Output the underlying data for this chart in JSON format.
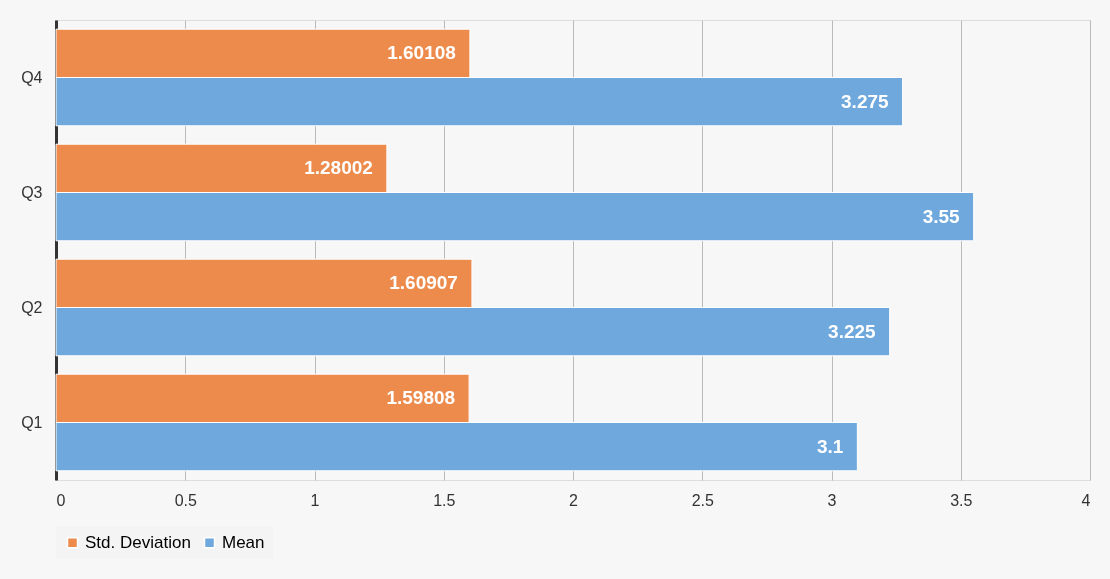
{
  "chart_data": {
    "type": "bar",
    "orientation": "horizontal",
    "categories": [
      "Q4",
      "Q3",
      "Q2",
      "Q1"
    ],
    "series": [
      {
        "name": "Std. Deviation",
        "color": "#ed8b4d",
        "values": [
          1.60108,
          1.28002,
          1.60907,
          1.59808
        ]
      },
      {
        "name": "Mean",
        "color": "#6fa8dc",
        "values": [
          3.275,
          3.55,
          3.225,
          3.1
        ]
      }
    ],
    "xlim": [
      0,
      4
    ],
    "xticks": [
      0,
      0.5,
      1,
      1.5,
      2,
      2.5,
      3,
      3.5,
      4
    ],
    "grid": "x",
    "legend": "bottom",
    "data_labels": true
  }
}
